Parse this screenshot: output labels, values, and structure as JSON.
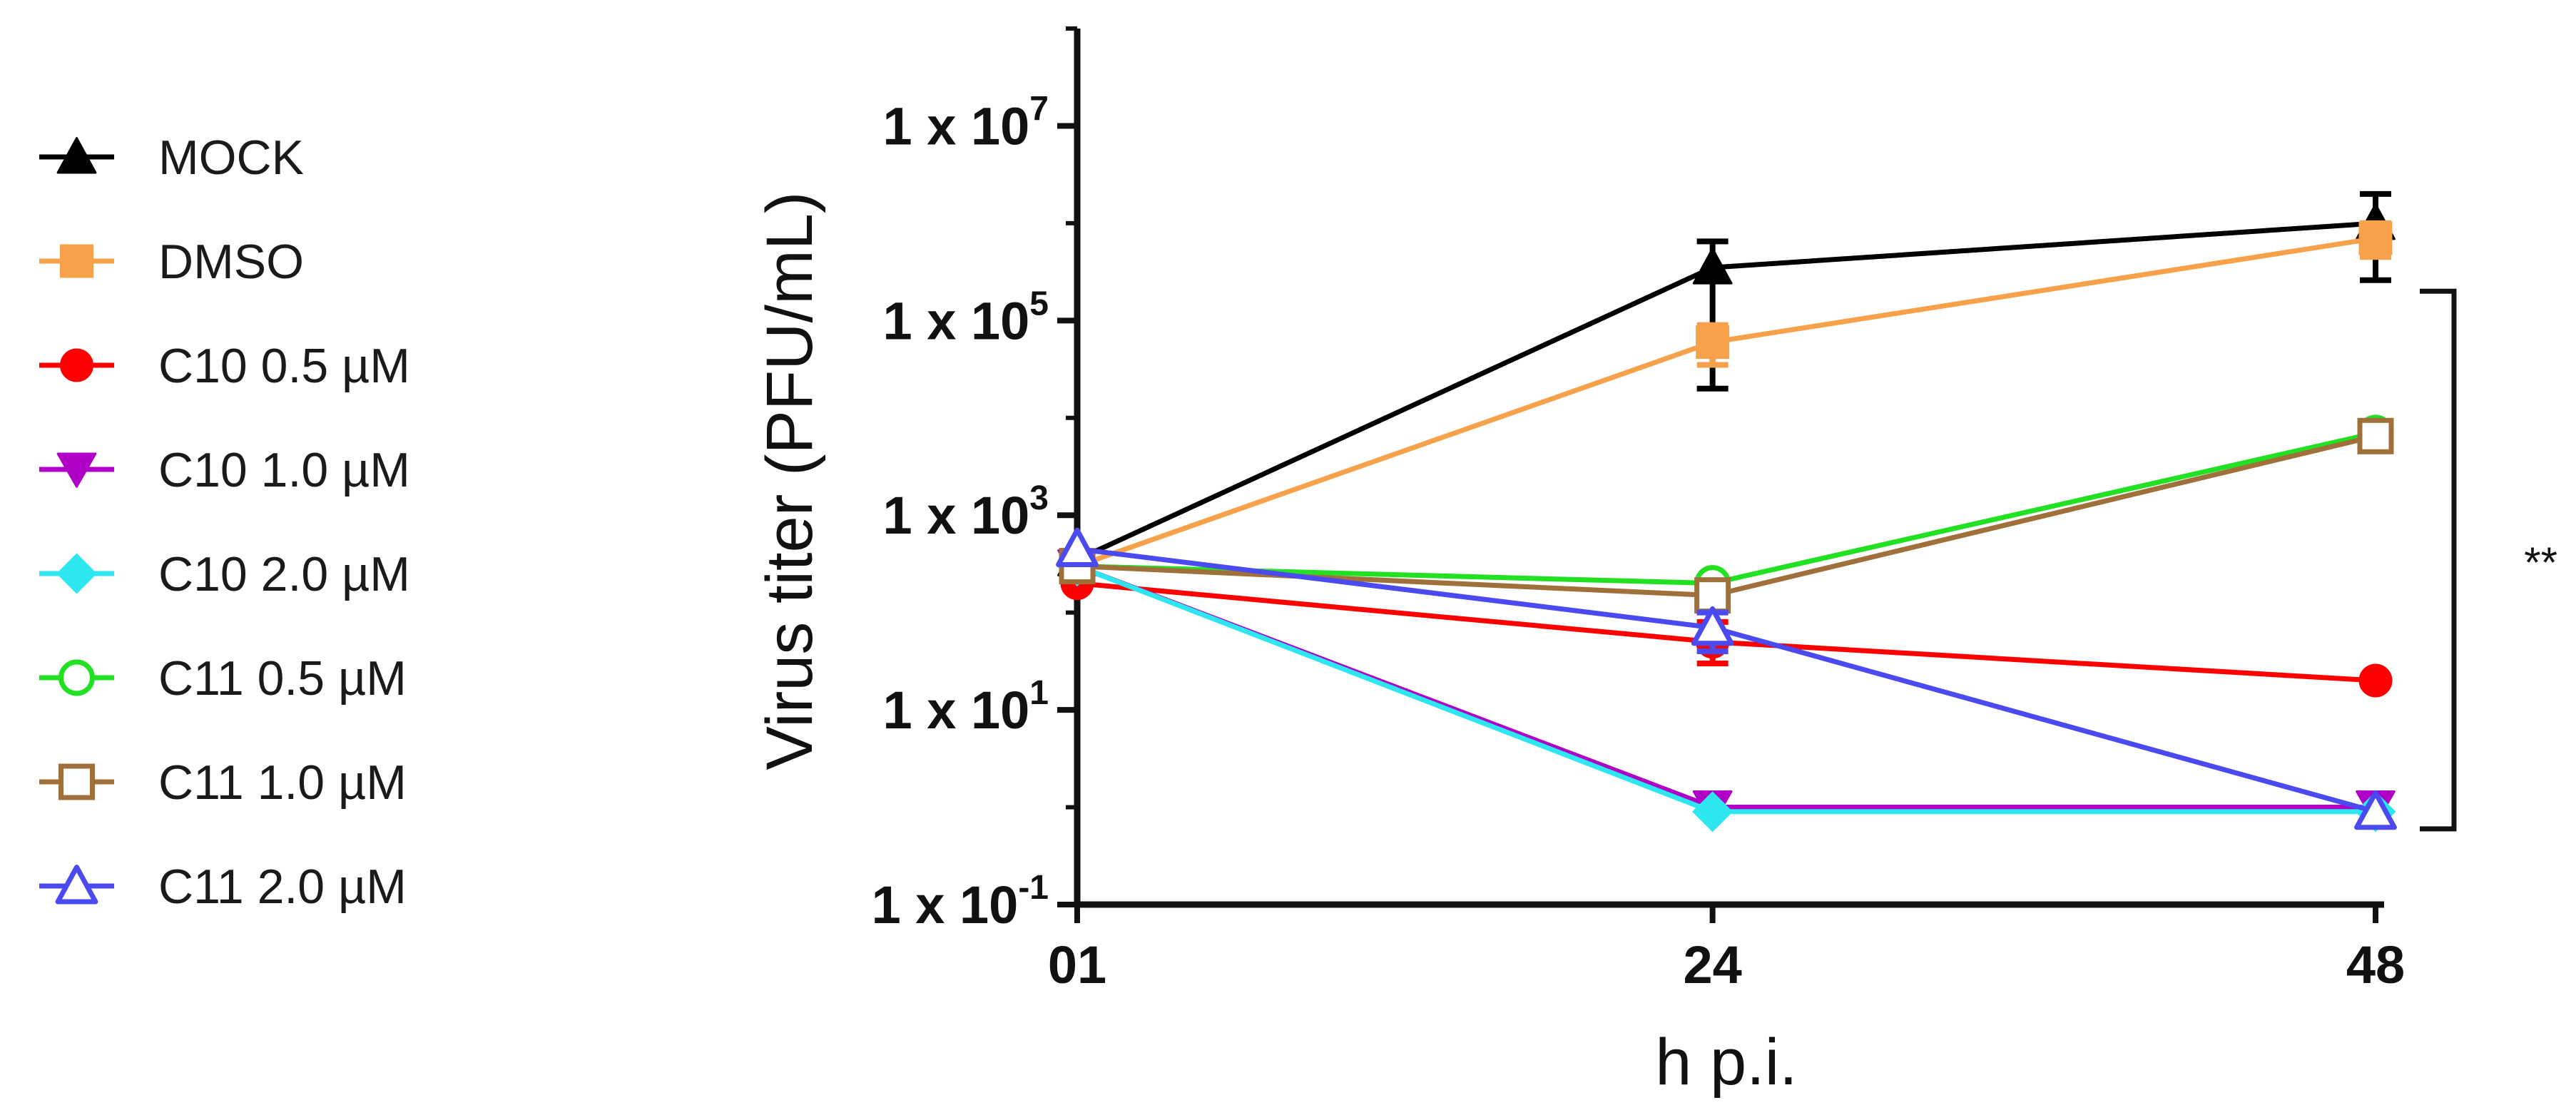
{
  "chart_data": {
    "type": "line",
    "title": "",
    "xlabel": "h p.i.",
    "ylabel": "Virus titer (PFU/mL)",
    "x": [
      1,
      24,
      48
    ],
    "xticks": [
      {
        "value": 1,
        "label": "01"
      },
      {
        "value": 24,
        "label": "24"
      },
      {
        "value": 48,
        "label": "48"
      }
    ],
    "xlim": [
      1,
      48
    ],
    "yscale": "log10",
    "ylim_exponent": [
      -1,
      8
    ],
    "yticks": [
      {
        "exponent": -1,
        "base": "1 x 10",
        "power": "-1"
      },
      {
        "exponent": 1,
        "base": "1 x 10",
        "power": "1"
      },
      {
        "exponent": 3,
        "base": "1 x 10",
        "power": "3"
      },
      {
        "exponent": 5,
        "base": "1 x 10",
        "power": "5"
      },
      {
        "exponent": 7,
        "base": "1 x 10",
        "power": "7"
      }
    ],
    "legend_position": "left",
    "series": [
      {
        "name": "MOCK",
        "color": "#000000",
        "marker": "triangle-up",
        "filled": true,
        "values": [
          350,
          350000,
          1000000
        ],
        "err_upper": [
          null,
          650000,
          2000000
        ],
        "err_lower": [
          null,
          20000,
          260000
        ]
      },
      {
        "name": "DMSO",
        "color": "#F7A24B",
        "marker": "square",
        "filled": true,
        "values": [
          300,
          60000,
          700000
        ],
        "err_upper": [
          null,
          90000,
          1000000
        ],
        "err_lower": [
          null,
          35000,
          450000
        ]
      },
      {
        "name": "C10 0.5 µM",
        "color": "#FF0000",
        "marker": "circle",
        "filled": true,
        "values": [
          200,
          50,
          20
        ],
        "err_upper": [
          null,
          80,
          null
        ],
        "err_lower": [
          null,
          30,
          null
        ]
      },
      {
        "name": "C10 1.0 µM",
        "color": "#B000C8",
        "marker": "triangle-down",
        "filled": true,
        "values": [
          300,
          1,
          1
        ],
        "err_upper": [
          null,
          null,
          null
        ],
        "err_lower": [
          null,
          null,
          null
        ]
      },
      {
        "name": "C10 2.0 µM",
        "color": "#2EE6F0",
        "marker": "diamond",
        "filled": true,
        "values": [
          300,
          0.9,
          0.9
        ],
        "err_upper": [
          null,
          null,
          null
        ],
        "err_lower": [
          null,
          null,
          null
        ]
      },
      {
        "name": "C11 0.5 µM",
        "color": "#22E022",
        "marker": "circle",
        "filled": false,
        "values": [
          300,
          200,
          7000
        ],
        "err_upper": [
          null,
          null,
          9000
        ],
        "err_lower": [
          null,
          null,
          5500
        ]
      },
      {
        "name": "C11 1.0 µM",
        "color": "#A0703A",
        "marker": "square",
        "filled": false,
        "values": [
          300,
          150,
          6500
        ],
        "err_upper": [
          null,
          null,
          null
        ],
        "err_lower": [
          null,
          null,
          4800
        ]
      },
      {
        "name": "C11 2.0 µM",
        "color": "#4A4AF0",
        "marker": "triangle-up",
        "filled": false,
        "values": [
          450,
          70,
          0.9
        ],
        "err_upper": [
          null,
          100,
          null
        ],
        "err_lower": [
          null,
          40,
          null
        ]
      }
    ],
    "annotations": [
      {
        "text": "**",
        "type": "significance-bracket",
        "x": 48,
        "y_from": 200000,
        "y_to": 0.6
      }
    ]
  }
}
